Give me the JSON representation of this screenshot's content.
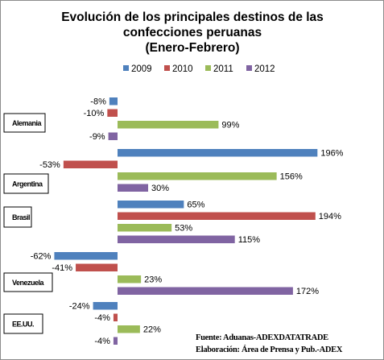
{
  "chart_data": {
    "type": "bar",
    "orientation": "horizontal",
    "title_lines": [
      "Evolución de los principales destinos de las",
      "confecciones peruanas",
      "(Enero-Febrero)"
    ],
    "categories": [
      "Alemania",
      "Argentina",
      "Brasil",
      "Venezuela",
      "EE.UU."
    ],
    "series": [
      {
        "name": "2009",
        "color": "#4f81bd",
        "values": [
          -8,
          196,
          65,
          -62,
          -24
        ],
        "labels": [
          "-8%",
          "196%",
          "65%",
          "-62%",
          "-24%"
        ]
      },
      {
        "name": "2010",
        "color": "#c0504d",
        "values": [
          -10,
          -53,
          194,
          -41,
          -4
        ],
        "labels": [
          "-10%",
          "-53%",
          "194%",
          "-41%",
          "-4%"
        ]
      },
      {
        "name": "2011",
        "color": "#9bbb59",
        "values": [
          99,
          156,
          53,
          23,
          22
        ],
        "labels": [
          "99%",
          "156%",
          "53%",
          "23%",
          "22%"
        ]
      },
      {
        "name": "2012",
        "color": "#8064a2",
        "values": [
          -9,
          30,
          115,
          172,
          -4
        ],
        "labels": [
          "-9%",
          "30%",
          "115%",
          "172%",
          "-4%"
        ]
      }
    ],
    "legend_position": "top",
    "grid": false,
    "source_lines": [
      "Fuente: Aduanas-ADEXDATATRADE",
      "Elaboración: Área de Prensa y Pub.-ADEX"
    ]
  }
}
